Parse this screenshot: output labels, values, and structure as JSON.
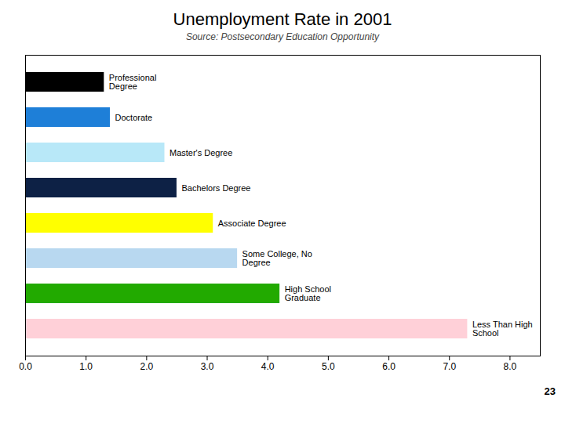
{
  "chart_data": {
    "type": "bar",
    "orientation": "horizontal",
    "title": "Unemployment Rate in 2001",
    "subtitle": "Source: Postsecondary Education Opportunity",
    "footnote": "23",
    "categories": [
      "Professional\nDegree",
      "Doctorate",
      "Master's Degree",
      "Bachelors Degree",
      "Associate Degree",
      "Some College, No\nDegree",
      "High School\nGraduate",
      "Less Than High\nSchool"
    ],
    "values": [
      1.3,
      1.4,
      2.3,
      2.5,
      3.1,
      3.5,
      4.2,
      7.3
    ],
    "colors": [
      "#000000",
      "#1E7FD8",
      "#B8E8F8",
      "#0D2145",
      "#FFFF00",
      "#B8D8F0",
      "#22AA00",
      "#FFD0D8"
    ],
    "xlim": [
      0,
      8.5
    ],
    "xticks": [
      {
        "value": 0,
        "label": "0.0"
      },
      {
        "value": 1,
        "label": "1.0"
      },
      {
        "value": 2,
        "label": "2.0"
      },
      {
        "value": 3,
        "label": "3.0"
      },
      {
        "value": 4,
        "label": "4.0"
      },
      {
        "value": 5,
        "label": "5.0"
      },
      {
        "value": 6,
        "label": "6.0"
      },
      {
        "value": 7,
        "label": "7.0"
      },
      {
        "value": 8,
        "label": "8.0"
      }
    ],
    "tick_labels": "x"
  }
}
